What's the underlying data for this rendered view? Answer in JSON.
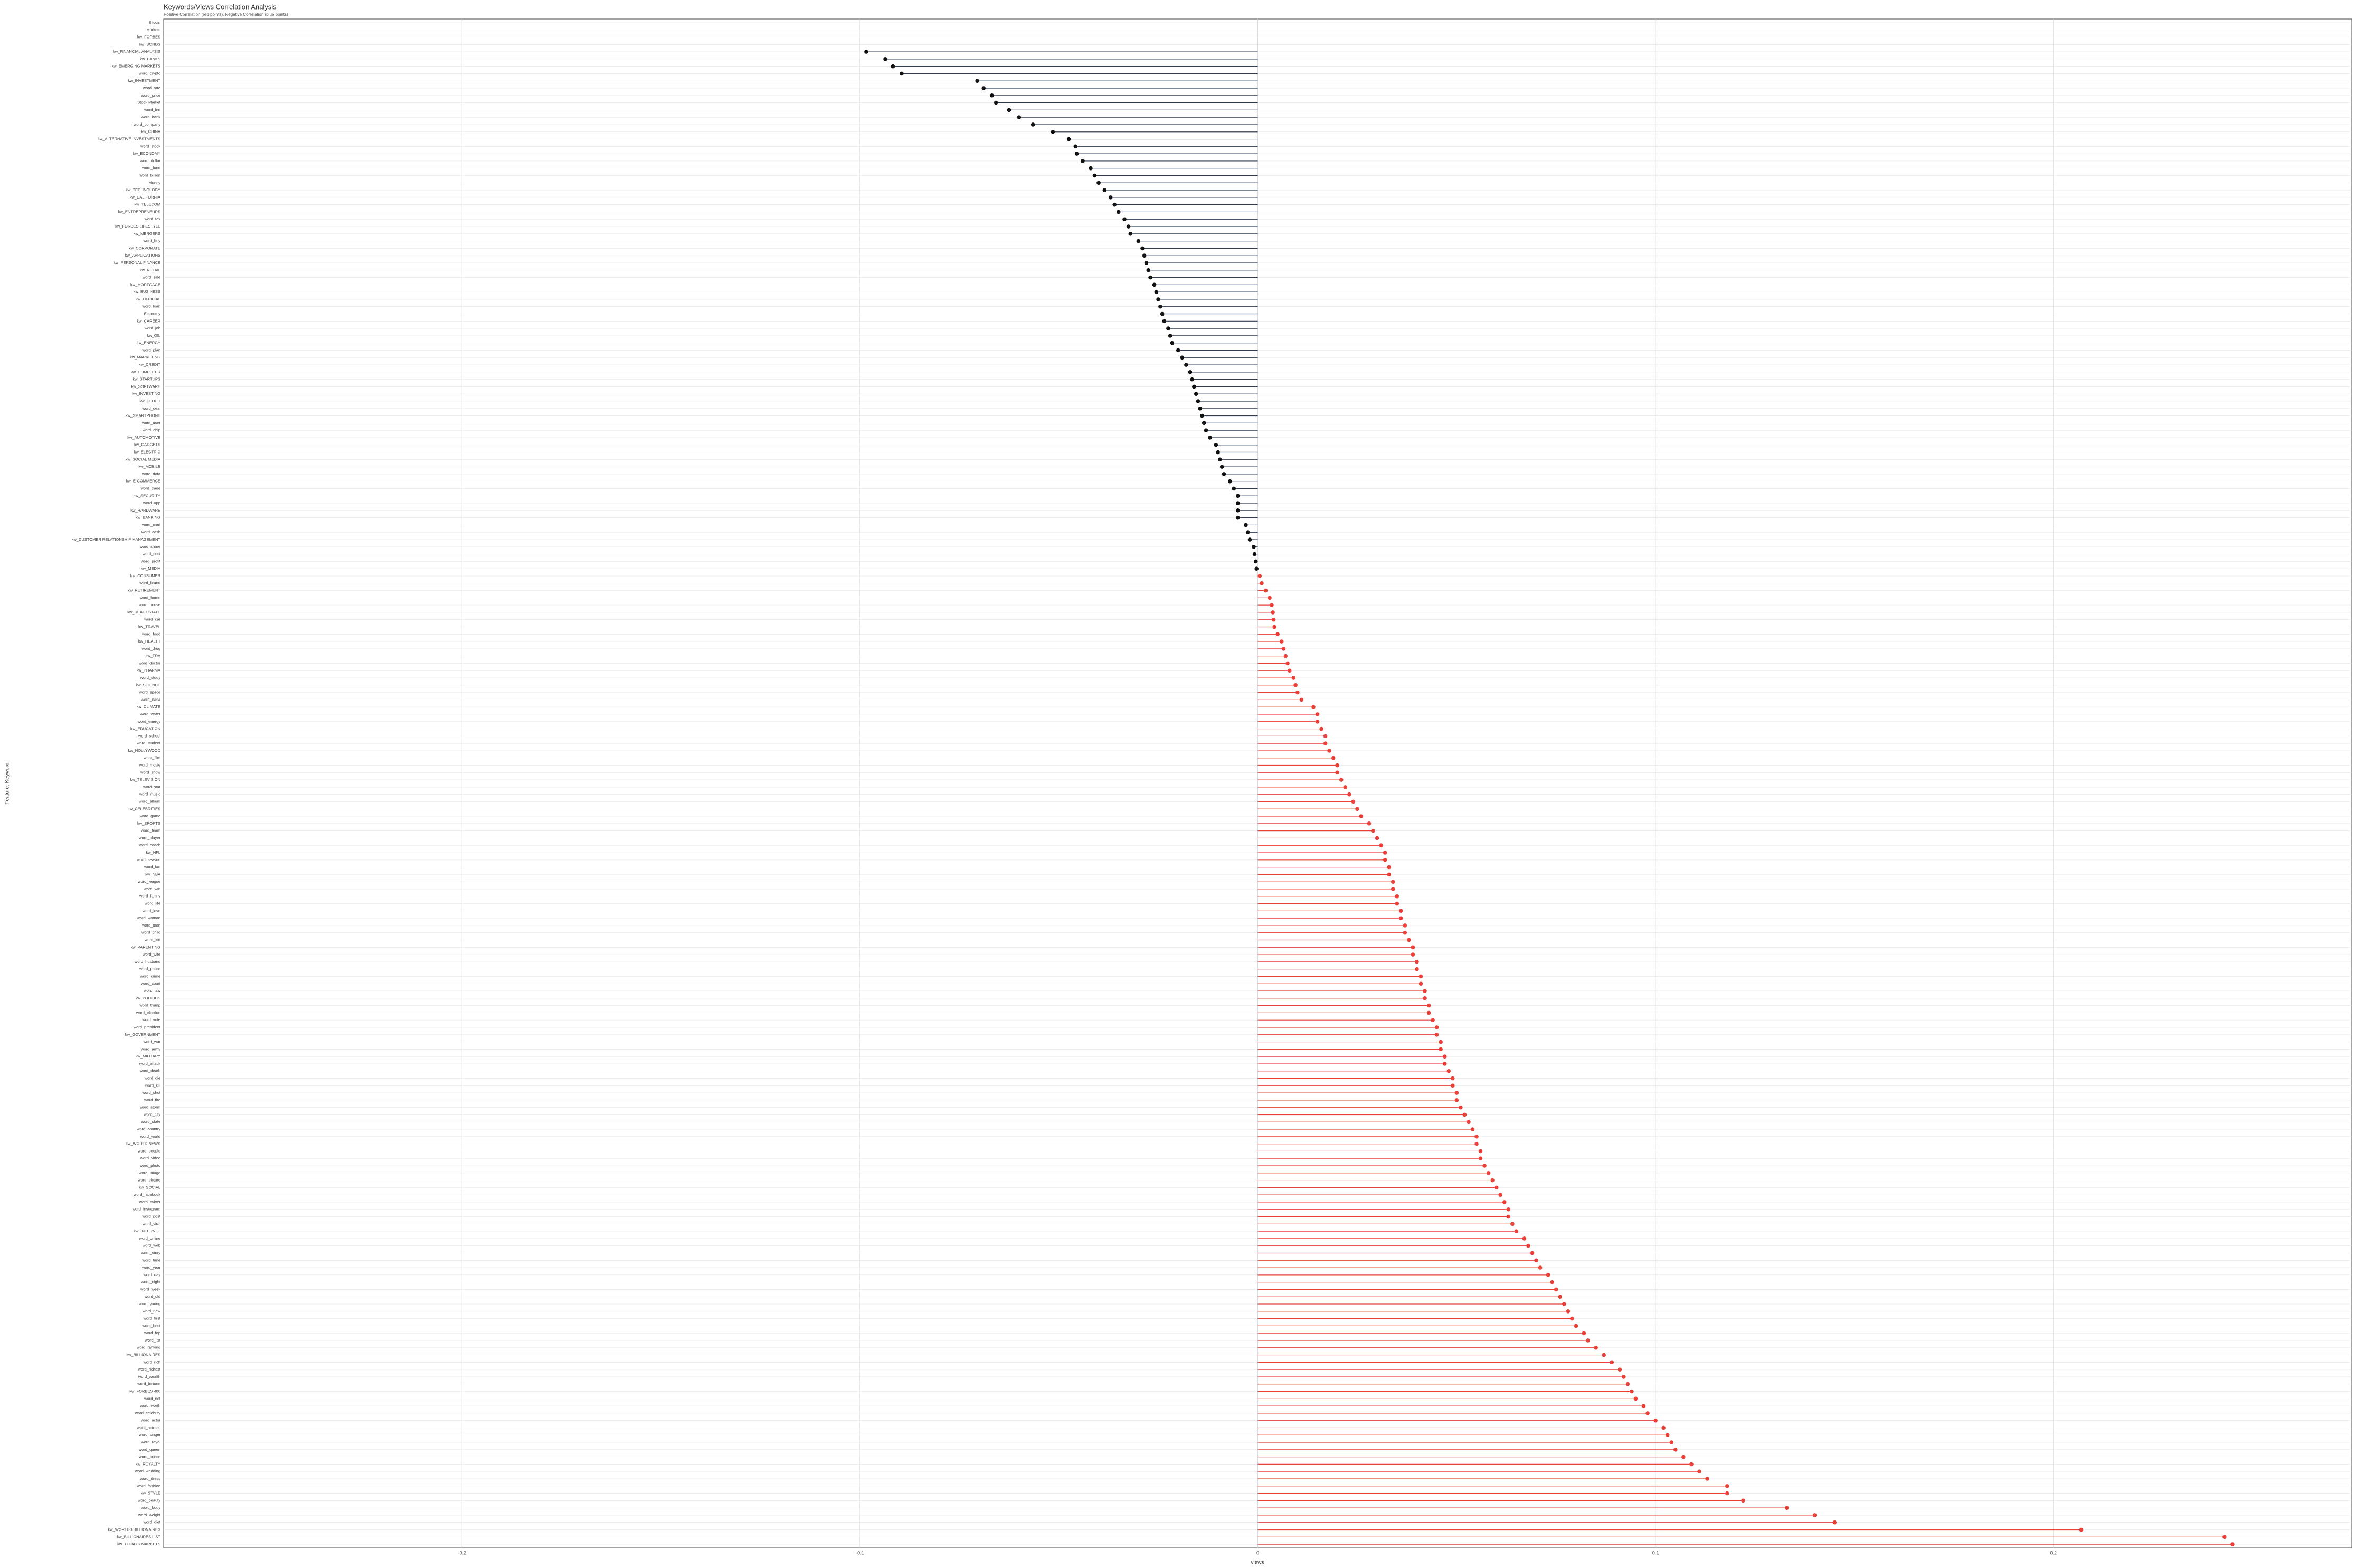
{
  "chart_data": {
    "type": "lollipop",
    "title": "Keywords/Views Correlation Analysis",
    "subtitle": "Positive Correlation (red points), Negative Correlation (blue points)",
    "x_label": "views",
    "y_label": "Feature: Keyword",
    "xlim": [
      -0.275,
      0.275
    ],
    "xticks": [
      -0.2,
      -0.1,
      0,
      0.1,
      0.2
    ],
    "grid": true,
    "positive_color": "#e8413a",
    "negative_color": "#2f3e55",
    "categories": [
      "Bitcoin",
      "Markets",
      "kw_FORBES",
      "kw_BONDS",
      "kw_FINANCIAL ANALYSIS",
      "kw_BANKS",
      "kw_EMERGING MARKETS",
      "word_crypto",
      "kw_INVESTMENT",
      "word_rate",
      "word_price",
      "Stock Market",
      "word_fed",
      "word_bank",
      "word_company",
      "kw_CHINA",
      "kw_ALTERNATIVE INVESTMENTS",
      "word_stock",
      "kw_ECONOMY",
      "word_dollar",
      "word_fund",
      "word_billion",
      "Money",
      "kw_TECHNOLOGY",
      "kw_CALIFORNIA",
      "kw_TELECOM",
      "kw_ENTREPRENEURS",
      "word_tax",
      "kw_FORBES LIFESTYLE",
      "kw_MERGERS",
      "word_buy",
      "kw_CORPORATE",
      "kw_APPLICATIONS",
      "kw_PERSONAL FINANCE",
      "kw_RETAIL",
      "word_sale",
      "kw_MORTGAGE",
      "kw_BUSINESS",
      "kw_OFFICIAL",
      "word_loan",
      "Economy",
      "kw_CAREER",
      "word_job",
      "kw_OIL",
      "kw_ENERGY",
      "word_plan",
      "kw_MARKETING",
      "kw_CREDIT",
      "kw_COMPUTER",
      "kw_STARTUPS",
      "kw_SOFTWARE",
      "kw_INVESTING",
      "kw_CLOUD",
      "word_deal",
      "kw_SMARTPHONE",
      "word_user",
      "word_chip",
      "kw_AUTOMOTIVE",
      "kw_GADGETS",
      "kw_ELECTRIC",
      "kw_SOCIAL MEDIA",
      "kw_MOBILE",
      "word_data",
      "kw_E-COMMERCE",
      "word_trade",
      "kw_SECURITY",
      "word_app",
      "kw_HARDWARE",
      "kw_BANKING",
      "word_card",
      "word_cash",
      "kw_CUSTOMER RELATIONSHIP MANAGEMENT",
      "word_share",
      "word_cost",
      "word_profit",
      "kw_MEDIA",
      "kw_CONSUMER",
      "word_brand",
      "kw_RETIREMENT",
      "word_home",
      "word_house",
      "kw_REAL ESTATE",
      "word_car",
      "kw_TRAVEL",
      "word_food",
      "kw_HEALTH",
      "word_drug",
      "kw_FDA",
      "word_doctor",
      "kw_PHARMA",
      "word_study",
      "kw_SCIENCE",
      "word_space",
      "word_nasa",
      "kw_CLIMATE",
      "word_water",
      "word_energy",
      "kw_EDUCATION",
      "word_school",
      "word_student",
      "kw_HOLLYWOOD",
      "word_film",
      "word_movie",
      "word_show",
      "kw_TELEVISION",
      "word_star",
      "word_music",
      "word_album",
      "kw_CELEBRITIES",
      "word_game",
      "kw_SPORTS",
      "word_team",
      "word_player",
      "word_coach",
      "kw_NFL",
      "word_season",
      "word_fan",
      "kw_NBA",
      "word_league",
      "word_win",
      "word_family",
      "word_life",
      "word_love",
      "word_woman",
      "word_man",
      "word_child",
      "word_kid",
      "kw_PARENTING",
      "word_wife",
      "word_husband",
      "word_police",
      "word_crime",
      "word_court",
      "word_law",
      "kw_POLITICS",
      "word_trump",
      "word_election",
      "word_vote",
      "word_president",
      "kw_GOVERNMENT",
      "word_war",
      "word_army",
      "kw_MILITARY",
      "word_attack",
      "word_death",
      "word_die",
      "word_kill",
      "word_shot",
      "word_fire",
      "word_storm",
      "word_city",
      "word_state",
      "word_country",
      "word_world",
      "kw_WORLD NEWS",
      "word_people",
      "word_video",
      "word_photo",
      "word_image",
      "word_picture",
      "kw_SOCIAL",
      "word_facebook",
      "word_twitter",
      "word_instagram",
      "word_post",
      "word_viral",
      "kw_INTERNET",
      "word_online",
      "word_web",
      "word_story",
      "word_time",
      "word_year",
      "word_day",
      "word_night",
      "word_week",
      "word_old",
      "word_young",
      "word_new",
      "word_first",
      "word_best",
      "word_top",
      "word_list",
      "word_ranking",
      "kw_BILLIONAIRES",
      "word_rich",
      "word_richest",
      "word_wealth",
      "word_fortune",
      "kw_FORBES 400",
      "word_net",
      "word_worth",
      "word_celebrity",
      "word_actor",
      "word_actress",
      "word_singer",
      "word_royal",
      "word_queen",
      "word_prince",
      "kw_ROYALTY",
      "word_wedding",
      "word_dress",
      "word_fashion",
      "kw_STYLE",
      "word_beauty",
      "word_body",
      "word_weight",
      "word_diet",
      "kw_WORLDS BILLIONAIRES",
      "kw_BILLIONAIRES LIST",
      "kw_TODAYS MARKETS"
    ],
    "values": [
      null,
      null,
      null,
      null,
      -0.0984,
      -0.0936,
      -0.0917,
      -0.0895,
      -0.0705,
      -0.0689,
      -0.0668,
      -0.0658,
      -0.0625,
      -0.06,
      -0.0565,
      -0.0515,
      -0.0475,
      -0.0458,
      -0.0455,
      -0.044,
      -0.042,
      -0.041,
      -0.04,
      -0.0385,
      -0.037,
      -0.036,
      -0.035,
      -0.0335,
      -0.0325,
      -0.032,
      -0.03,
      -0.029,
      -0.0285,
      -0.028,
      -0.0275,
      -0.027,
      -0.026,
      -0.0255,
      -0.025,
      -0.0245,
      -0.024,
      -0.0235,
      -0.0225,
      -0.022,
      -0.0215,
      -0.02,
      -0.019,
      -0.018,
      -0.017,
      -0.0165,
      -0.016,
      -0.0155,
      -0.015,
      -0.0145,
      -0.014,
      -0.0135,
      -0.013,
      -0.012,
      -0.0105,
      -0.01,
      -0.0095,
      -0.009,
      -0.0085,
      -0.007,
      -0.006,
      -0.005,
      -0.005,
      -0.005,
      -0.005,
      -0.003,
      -0.0025,
      -0.002,
      -0.001,
      -0.0008,
      -0.0005,
      -0.0003,
      0.0005,
      0.001,
      0.002,
      0.003,
      0.0035,
      0.0038,
      0.004,
      0.0042,
      0.005,
      0.006,
      0.0065,
      0.007,
      0.0075,
      0.008,
      0.009,
      0.0095,
      0.01,
      0.011,
      0.014,
      0.015,
      0.015,
      0.016,
      0.017,
      0.017,
      0.018,
      0.019,
      0.02,
      0.02,
      0.021,
      0.022,
      0.023,
      0.024,
      0.025,
      0.026,
      0.028,
      0.029,
      0.03,
      0.031,
      0.032,
      0.032,
      0.033,
      0.033,
      0.034,
      0.034,
      0.035,
      0.035,
      0.036,
      0.036,
      0.037,
      0.037,
      0.038,
      0.039,
      0.039,
      0.04,
      0.04,
      0.041,
      0.041,
      0.042,
      0.042,
      0.043,
      0.043,
      0.044,
      0.045,
      0.045,
      0.046,
      0.046,
      0.047,
      0.047,
      0.048,
      0.049,
      0.049,
      0.05,
      0.05,
      0.051,
      0.052,
      0.053,
      0.054,
      0.055,
      0.055,
      0.056,
      0.056,
      0.057,
      0.058,
      0.059,
      0.06,
      0.061,
      0.062,
      0.063,
      0.063,
      0.064,
      0.065,
      0.067,
      0.068,
      0.069,
      0.07,
      0.071,
      0.073,
      0.074,
      0.075,
      0.076,
      0.077,
      0.078,
      0.079,
      0.08,
      0.082,
      0.083,
      0.085,
      0.087,
      0.089,
      0.091,
      0.092,
      0.093,
      0.094,
      0.095,
      0.097,
      0.098,
      0.1,
      0.102,
      0.103,
      0.104,
      0.105,
      0.107,
      0.109,
      0.111,
      0.113,
      0.118,
      0.118,
      0.122,
      0.133,
      0.14,
      0.145,
      0.207,
      0.243,
      0.245
    ]
  }
}
